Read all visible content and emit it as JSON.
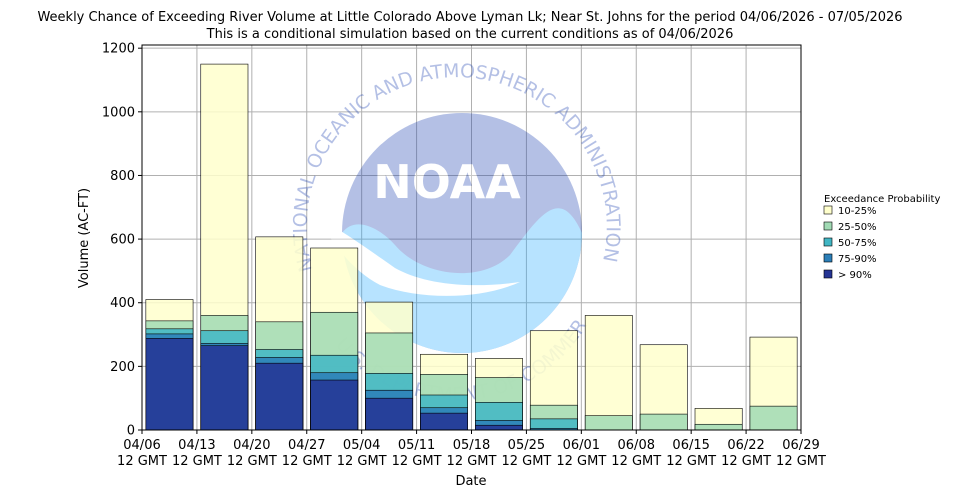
{
  "chart_data": {
    "type": "bar",
    "title": "Weekly Chance of Exceeding River Volume at Little Colorado Above Lyman Lk; Near St. Johns for the period 04/06/2026 - 07/05/2026",
    "subtitle": "This is a conditional simulation based on the current conditions as of 04/06/2026",
    "xlabel": "Date",
    "ylabel": "Volume (AC-FT)",
    "ylim": [
      0,
      1210
    ],
    "yticks": [
      "0",
      "200",
      "400",
      "600",
      "800",
      "1000",
      "1200"
    ],
    "ytick_values": [
      0,
      200,
      400,
      600,
      800,
      1000,
      1200
    ],
    "xticks": [
      {
        "date": "04/06",
        "time": "12 GMT"
      },
      {
        "date": "04/13",
        "time": "12 GMT"
      },
      {
        "date": "04/20",
        "time": "12 GMT"
      },
      {
        "date": "04/27",
        "time": "12 GMT"
      },
      {
        "date": "05/04",
        "time": "12 GMT"
      },
      {
        "date": "05/11",
        "time": "12 GMT"
      },
      {
        "date": "05/18",
        "time": "12 GMT"
      },
      {
        "date": "05/25",
        "time": "12 GMT"
      },
      {
        "date": "06/01",
        "time": "12 GMT"
      },
      {
        "date": "06/08",
        "time": "12 GMT"
      },
      {
        "date": "06/15",
        "time": "12 GMT"
      },
      {
        "date": "06/22",
        "time": "12 GMT"
      },
      {
        "date": "06/29",
        "time": "12 GMT"
      }
    ],
    "categories": [
      "04/06",
      "04/13",
      "04/20",
      "04/27",
      "05/04",
      "05/11",
      "05/18",
      "05/25",
      "06/01",
      "06/08",
      "06/15",
      "06/22"
    ],
    "series": [
      {
        "name": "10-25%",
        "color": "#ffffcc",
        "values": [
          410,
          1150,
          607,
          572,
          402,
          238,
          225,
          312,
          360,
          268,
          68,
          292
        ]
      },
      {
        "name": "25-50%",
        "color": "#a1dab4",
        "values": [
          343,
          360,
          340,
          370,
          305,
          175,
          165,
          78,
          45,
          50,
          18,
          75
        ]
      },
      {
        "name": "50-75%",
        "color": "#41b6c4",
        "values": [
          318,
          312,
          253,
          235,
          178,
          110,
          87,
          35,
          0,
          0,
          0,
          0
        ]
      },
      {
        "name": "75-90%",
        "color": "#2c7fb8",
        "values": [
          302,
          272,
          228,
          180,
          125,
          70,
          30,
          5,
          0,
          0,
          0,
          0
        ]
      },
      {
        "name": "> 90%",
        "color": "#253494",
        "values": [
          288,
          265,
          210,
          157,
          100,
          53,
          15,
          0,
          0,
          0,
          0,
          0
        ]
      }
    ],
    "legend": {
      "title": "Exceedance Probability",
      "position": "right"
    },
    "grid": true
  },
  "watermark": {
    "logo_text": "NOAA",
    "ring_text_top": "NATIONAL OCEANIC AND ATMOSPHERIC ADMINISTRATION",
    "ring_text_bottom": "U.S. DEPARTMENT OF COMMERCE"
  }
}
